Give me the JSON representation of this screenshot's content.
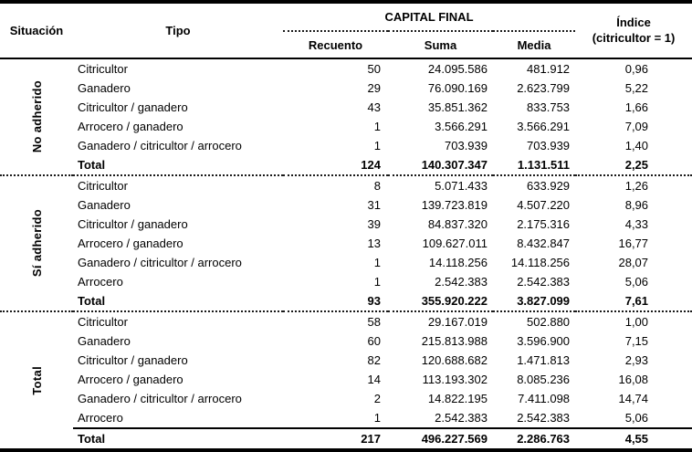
{
  "table": {
    "headers": {
      "situacion": "Situación",
      "tipo": "Tipo",
      "capital_final": "CAPITAL FINAL",
      "recuento": "Recuento",
      "suma": "Suma",
      "media": "Media",
      "indice_line1": "Índice",
      "indice_line2": "(citricultor = 1)"
    },
    "groups": [
      {
        "label": "No adherido",
        "rows": [
          {
            "tipo": "Citricultor",
            "recuento": "50",
            "suma": "24.095.586",
            "media": "481.912",
            "indice": "0,96"
          },
          {
            "tipo": "Ganadero",
            "recuento": "29",
            "suma": "76.090.169",
            "media": "2.623.799",
            "indice": "5,22"
          },
          {
            "tipo": "Citricultor / ganadero",
            "recuento": "43",
            "suma": "35.851.362",
            "media": "833.753",
            "indice": "1,66"
          },
          {
            "tipo": "Arrocero / ganadero",
            "recuento": "1",
            "suma": "3.566.291",
            "media": "3.566.291",
            "indice": "7,09"
          },
          {
            "tipo": "Ganadero / citricultor / arrocero",
            "recuento": "1",
            "suma": "703.939",
            "media": "703.939",
            "indice": "1,40"
          }
        ],
        "total": {
          "tipo": "Total",
          "recuento": "124",
          "suma": "140.307.347",
          "media": "1.131.511",
          "indice": "2,25"
        }
      },
      {
        "label": "Sí adherido",
        "rows": [
          {
            "tipo": "Citricultor",
            "recuento": "8",
            "suma": "5.071.433",
            "media": "633.929",
            "indice": "1,26"
          },
          {
            "tipo": "Ganadero",
            "recuento": "31",
            "suma": "139.723.819",
            "media": "4.507.220",
            "indice": "8,96"
          },
          {
            "tipo": "Citricultor / ganadero",
            "recuento": "39",
            "suma": "84.837.320",
            "media": "2.175.316",
            "indice": "4,33"
          },
          {
            "tipo": "Arrocero / ganadero",
            "recuento": "13",
            "suma": "109.627.011",
            "media": "8.432.847",
            "indice": "16,77"
          },
          {
            "tipo": "Ganadero / citricultor / arrocero",
            "recuento": "1",
            "suma": "14.118.256",
            "media": "14.118.256",
            "indice": "28,07"
          },
          {
            "tipo": "Arrocero",
            "recuento": "1",
            "suma": "2.542.383",
            "media": "2.542.383",
            "indice": "5,06"
          }
        ],
        "total": {
          "tipo": "Total",
          "recuento": "93",
          "suma": "355.920.222",
          "media": "3.827.099",
          "indice": "7,61"
        }
      },
      {
        "label": "Total",
        "rows": [
          {
            "tipo": "Citricultor",
            "recuento": "58",
            "suma": "29.167.019",
            "media": "502.880",
            "indice": "1,00"
          },
          {
            "tipo": "Ganadero",
            "recuento": "60",
            "suma": "215.813.988",
            "media": "3.596.900",
            "indice": "7,15"
          },
          {
            "tipo": "Citricultor / ganadero",
            "recuento": "82",
            "suma": "120.688.682",
            "media": "1.471.813",
            "indice": "2,93"
          },
          {
            "tipo": "Arrocero / ganadero",
            "recuento": "14",
            "suma": "113.193.302",
            "media": "8.085.236",
            "indice": "16,08"
          },
          {
            "tipo": "Ganadero / citricultor / arrocero",
            "recuento": "2",
            "suma": "14.822.195",
            "media": "7.411.098",
            "indice": "14,74"
          },
          {
            "tipo": "Arrocero",
            "recuento": "1",
            "suma": "2.542.383",
            "media": "2.542.383",
            "indice": "5,06"
          }
        ],
        "total": {
          "tipo": "Total",
          "recuento": "217",
          "suma": "496.227.569",
          "media": "2.286.763",
          "indice": "4,55"
        }
      }
    ]
  }
}
